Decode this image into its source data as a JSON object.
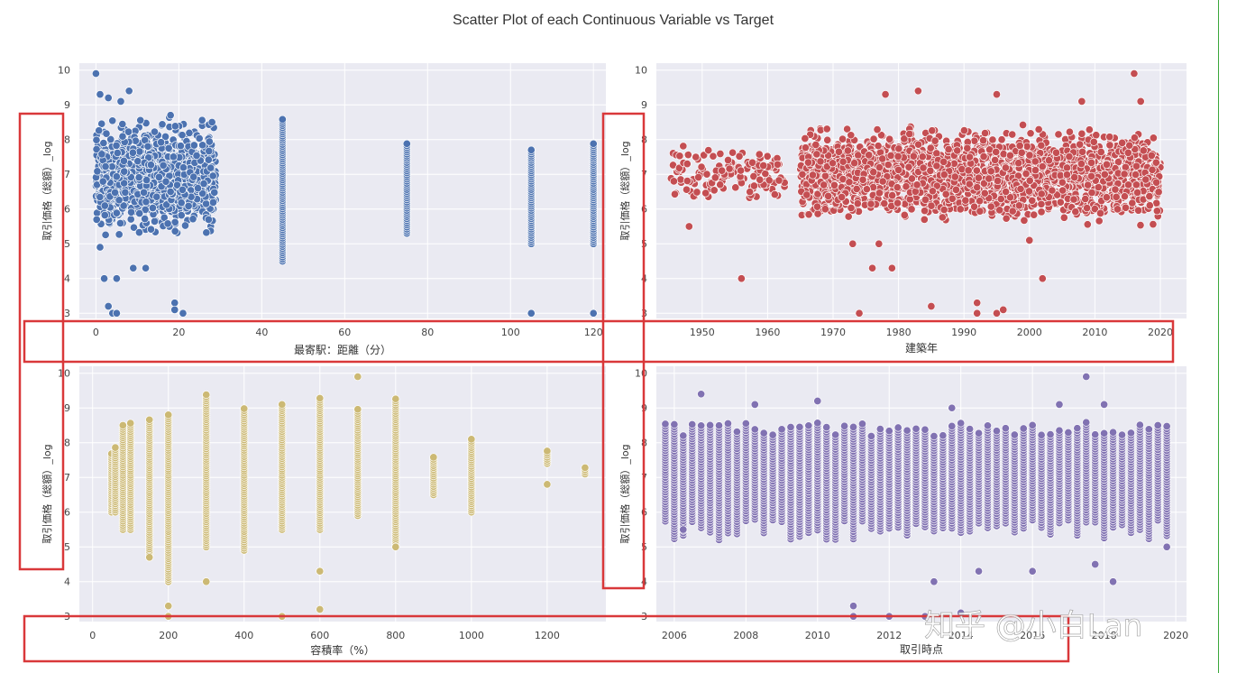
{
  "title": "Scatter Plot of each Continuous Variable vs Target",
  "watermark": "知乎 @小白Lan",
  "colors": {
    "panel_bg": "#eaeaf2",
    "grid": "#ffffff",
    "highlight": "#d9383a"
  },
  "chart_data": [
    {
      "type": "scatter",
      "xlabel": "最寄駅：距離（分）",
      "ylabel": "取引価格（総額）_log",
      "color": "#4c72b0",
      "xlim": [
        -4,
        123
      ],
      "ylim": [
        2.85,
        10.2
      ],
      "xticks": [
        0,
        20,
        40,
        60,
        80,
        100,
        120
      ],
      "yticks": [
        3,
        4,
        5,
        6,
        7,
        8,
        9,
        10
      ],
      "columns": [
        {
          "x": 45,
          "ymin": 4.5,
          "ymax": 8.6
        },
        {
          "x": 75,
          "ymin": 5.3,
          "ymax": 7.9
        },
        {
          "x": 105,
          "ymin": 5.0,
          "ymax": 7.7
        },
        {
          "x": 120,
          "ymin": 5.0,
          "ymax": 7.9
        }
      ],
      "blob": {
        "xmin": 0,
        "xmax": 29,
        "ymin": 5.0,
        "ymax": 8.8
      },
      "points": [
        {
          "x": 0,
          "y": 9.9
        },
        {
          "x": 8,
          "y": 9.4
        },
        {
          "x": 1,
          "y": 9.3
        },
        {
          "x": 3,
          "y": 9.2
        },
        {
          "x": 6,
          "y": 9.1
        },
        {
          "x": 1,
          "y": 4.9
        },
        {
          "x": 2,
          "y": 4.0
        },
        {
          "x": 5,
          "y": 4.0
        },
        {
          "x": 9,
          "y": 4.3
        },
        {
          "x": 12,
          "y": 4.3
        },
        {
          "x": 3,
          "y": 3.2
        },
        {
          "x": 4,
          "y": 3.0
        },
        {
          "x": 5,
          "y": 3.0
        },
        {
          "x": 19,
          "y": 3.3
        },
        {
          "x": 19,
          "y": 3.1
        },
        {
          "x": 21,
          "y": 3.0
        },
        {
          "x": 105,
          "y": 3.0
        },
        {
          "x": 120,
          "y": 3.0
        },
        {
          "x": 28,
          "y": 8.5
        },
        {
          "x": 18,
          "y": 8.7
        }
      ]
    },
    {
      "type": "scatter",
      "xlabel": "建築年",
      "ylabel": "取引価格（総額）_log",
      "color": "#c44e52",
      "xlim": [
        1943,
        2024
      ],
      "ylim": [
        2.85,
        10.2
      ],
      "xticks": [
        1950,
        1960,
        1970,
        1980,
        1990,
        2000,
        2010,
        2020
      ],
      "yticks": [
        3,
        4,
        5,
        6,
        7,
        8,
        9,
        10
      ],
      "blob": {
        "xmin": 1965,
        "xmax": 2020,
        "ymin": 5.4,
        "ymax": 8.6
      },
      "early": {
        "xmin": 1945,
        "xmax": 1963,
        "ymin": 6.0,
        "ymax": 8.0
      },
      "points": [
        {
          "x": 2016,
          "y": 9.9
        },
        {
          "x": 1983,
          "y": 9.4
        },
        {
          "x": 1978,
          "y": 9.3
        },
        {
          "x": 1995,
          "y": 9.3
        },
        {
          "x": 2017,
          "y": 9.1
        },
        {
          "x": 2008,
          "y": 9.1
        },
        {
          "x": 1948,
          "y": 5.5
        },
        {
          "x": 1956,
          "y": 4.0
        },
        {
          "x": 1979,
          "y": 4.3
        },
        {
          "x": 1976,
          "y": 4.3
        },
        {
          "x": 2002,
          "y": 4.0
        },
        {
          "x": 1974,
          "y": 3.0
        },
        {
          "x": 1985,
          "y": 3.2
        },
        {
          "x": 1992,
          "y": 3.3
        },
        {
          "x": 1992,
          "y": 3.0
        },
        {
          "x": 1995,
          "y": 3.0
        },
        {
          "x": 1996,
          "y": 3.1
        },
        {
          "x": 1973,
          "y": 5.0
        },
        {
          "x": 1977,
          "y": 5.0
        },
        {
          "x": 2000,
          "y": 5.1
        }
      ]
    },
    {
      "type": "scatter",
      "xlabel": "容積率（%）",
      "ylabel": "取引価格（総額）_log",
      "color": "#ccb974",
      "xlim": [
        -35,
        1355
      ],
      "ylim": [
        2.85,
        10.2
      ],
      "xticks": [
        0,
        200,
        400,
        600,
        800,
        1000,
        1200
      ],
      "yticks": [
        3,
        4,
        5,
        6,
        7,
        8,
        9,
        10
      ],
      "columns": [
        {
          "x": 50,
          "ymin": 6.0,
          "ymax": 7.7
        },
        {
          "x": 60,
          "ymin": 6.0,
          "ymax": 7.9
        },
        {
          "x": 80,
          "ymin": 5.5,
          "ymax": 8.5
        },
        {
          "x": 100,
          "ymin": 5.5,
          "ymax": 8.6
        },
        {
          "x": 150,
          "ymin": 4.7,
          "ymax": 8.7
        },
        {
          "x": 200,
          "ymin": 4.0,
          "ymax": 8.8
        },
        {
          "x": 300,
          "ymin": 5.0,
          "ymax": 9.4
        },
        {
          "x": 400,
          "ymin": 4.9,
          "ymax": 9.0
        },
        {
          "x": 500,
          "ymin": 5.5,
          "ymax": 9.1
        },
        {
          "x": 600,
          "ymin": 5.5,
          "ymax": 9.3
        },
        {
          "x": 700,
          "ymin": 5.9,
          "ymax": 9.0
        },
        {
          "x": 800,
          "ymin": 5.0,
          "ymax": 9.3
        },
        {
          "x": 900,
          "ymin": 6.5,
          "ymax": 7.6
        },
        {
          "x": 1000,
          "ymin": 6.0,
          "ymax": 8.1
        },
        {
          "x": 1200,
          "ymin": 7.4,
          "ymax": 7.8
        },
        {
          "x": 1300,
          "ymin": 7.1,
          "ymax": 7.3
        }
      ],
      "points": [
        {
          "x": 700,
          "y": 9.9
        },
        {
          "x": 200,
          "y": 3.3
        },
        {
          "x": 200,
          "y": 3.0
        },
        {
          "x": 300,
          "y": 4.0
        },
        {
          "x": 500,
          "y": 3.0
        },
        {
          "x": 600,
          "y": 3.2
        },
        {
          "x": 600,
          "y": 4.3
        },
        {
          "x": 1200,
          "y": 6.8
        },
        {
          "x": 150,
          "y": 4.7
        },
        {
          "x": 800,
          "y": 5.0
        }
      ]
    },
    {
      "type": "scatter",
      "xlabel": "取引時点",
      "ylabel": "取引価格（総額）_log",
      "color": "#8172b2",
      "xlim": [
        2005.5,
        2020.3
      ],
      "ylim": [
        2.85,
        10.2
      ],
      "xticks": [
        2006,
        2008,
        2010,
        2012,
        2014,
        2016,
        2018,
        2020
      ],
      "yticks": [
        3,
        4,
        5,
        6,
        7,
        8,
        9,
        10
      ],
      "quarter_columns": {
        "start": 2005.75,
        "end": 2019.75,
        "step": 0.25,
        "ymin": 5.2,
        "ymax": 8.6
      },
      "points": [
        {
          "x": 2017.5,
          "y": 9.9
        },
        {
          "x": 2006.75,
          "y": 9.4
        },
        {
          "x": 2010,
          "y": 9.2
        },
        {
          "x": 2008.25,
          "y": 9.1
        },
        {
          "x": 2013.75,
          "y": 9.0
        },
        {
          "x": 2016.75,
          "y": 9.1
        },
        {
          "x": 2018,
          "y": 9.1
        },
        {
          "x": 2011,
          "y": 3.3
        },
        {
          "x": 2011,
          "y": 3.0
        },
        {
          "x": 2012,
          "y": 3.0
        },
        {
          "x": 2013,
          "y": 3.0
        },
        {
          "x": 2014,
          "y": 3.1
        },
        {
          "x": 2013.25,
          "y": 4.0
        },
        {
          "x": 2014.5,
          "y": 4.3
        },
        {
          "x": 2016,
          "y": 4.3
        },
        {
          "x": 2018.25,
          "y": 4.0
        },
        {
          "x": 2017.75,
          "y": 4.5
        },
        {
          "x": 2006.25,
          "y": 5.5
        },
        {
          "x": 2019.75,
          "y": 5.0
        }
      ]
    }
  ]
}
